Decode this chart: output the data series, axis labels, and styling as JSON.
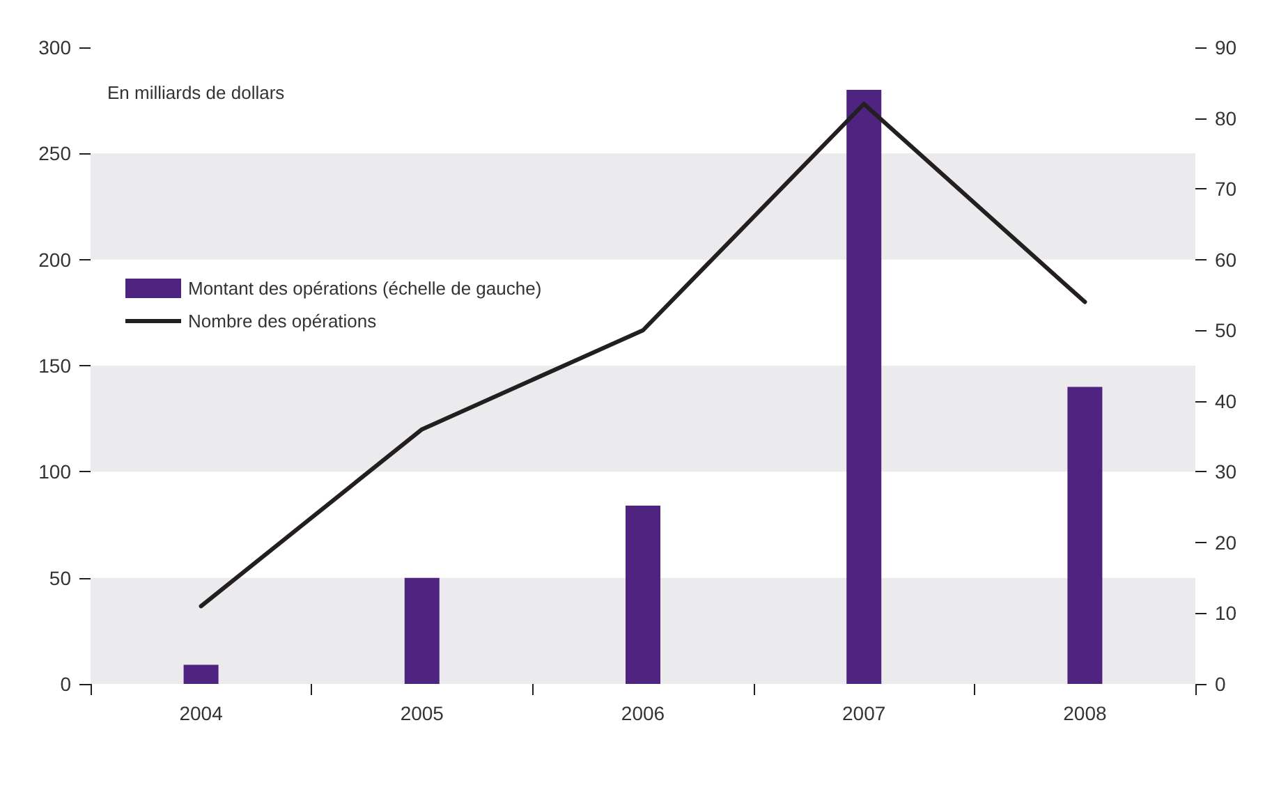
{
  "chart_data": {
    "type": "bar",
    "ylabel": "En milliards de dollars",
    "categories": [
      "2004",
      "2005",
      "2006",
      "2007",
      "2008"
    ],
    "series": [
      {
        "name": "Montant des opérations (échelle de gauche)",
        "color": "#4f2480",
        "values": [
          9,
          50,
          84,
          280,
          140
        ]
      },
      {
        "name": "Nombre des opérations",
        "type": "line",
        "axis": "y2",
        "color": "#231f20",
        "values": [
          11,
          36,
          50,
          82,
          54
        ]
      }
    ],
    "ylim": [
      0,
      300
    ],
    "yticks": [
      0,
      50,
      100,
      150,
      200,
      250,
      300
    ],
    "y2lim": [
      0,
      90
    ],
    "y2ticks": [
      0,
      10,
      20,
      30,
      40,
      50,
      60,
      70,
      80,
      90
    ],
    "bands": [
      {
        "axis": "y",
        "from": 0,
        "to": 50,
        "color": "#ebebee"
      },
      {
        "axis": "y",
        "from": 100,
        "to": 150,
        "color": "#ebebee"
      },
      {
        "axis": "y",
        "from": 200,
        "to": 250,
        "color": "#ebebee"
      }
    ],
    "grid": false,
    "legend": "left",
    "marker": "none",
    "line_style": "solid"
  }
}
